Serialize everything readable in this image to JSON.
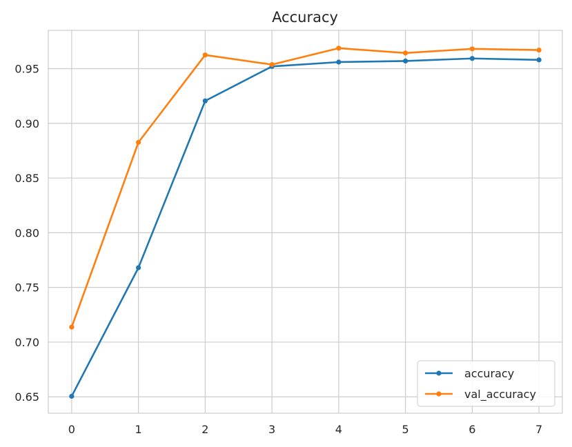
{
  "chart_data": {
    "type": "line",
    "title": "Accuracy",
    "xlabel": "",
    "ylabel": "",
    "x": [
      0,
      1,
      2,
      3,
      4,
      5,
      6,
      7
    ],
    "x_ticks": [
      "0",
      "1",
      "2",
      "3",
      "4",
      "5",
      "6",
      "7"
    ],
    "xlim": [
      -0.35,
      7.35
    ],
    "ylim": [
      0.635,
      0.985
    ],
    "y_ticks": [
      "0.65",
      "0.70",
      "0.75",
      "0.80",
      "0.85",
      "0.90",
      "0.95"
    ],
    "grid": true,
    "legend_position": "lower-right",
    "series": [
      {
        "name": "accuracy",
        "color": "#1f77b4",
        "marker": "circle",
        "values": [
          0.6505,
          0.768,
          0.9205,
          0.952,
          0.956,
          0.957,
          0.9593,
          0.958
        ]
      },
      {
        "name": "val_accuracy",
        "color": "#ff7f0e",
        "marker": "circle",
        "values": [
          0.7137,
          0.8826,
          0.9625,
          0.9537,
          0.9687,
          0.9643,
          0.9681,
          0.967
        ]
      }
    ]
  }
}
